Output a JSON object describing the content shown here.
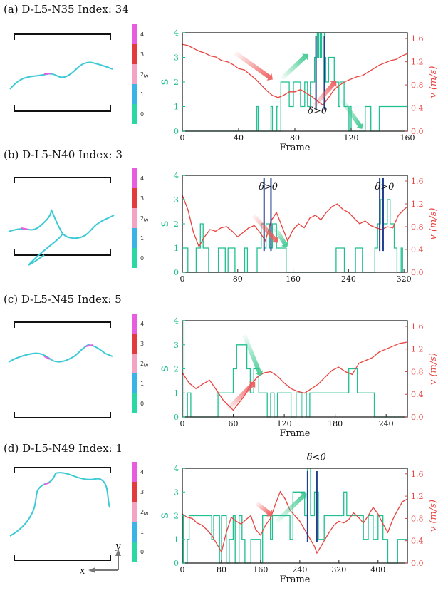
{
  "colors": {
    "s_series": "#1fbf8f",
    "v_series": "#e8433f",
    "marker": "#1f3f8f",
    "arrow_green": "#3cc98f",
    "arrow_red": "#ef5a5a",
    "axis": "#222222",
    "cb": [
      "#29d8a2",
      "#39b4e6",
      "#f3a3c3",
      "#e33a3e",
      "#e85de0"
    ]
  },
  "colorbar": {
    "label": "S",
    "ticks": [
      "0",
      "1",
      "2",
      "3",
      "4"
    ]
  },
  "legend_axes": {
    "x_label": "x",
    "y_label": "y"
  },
  "chart_data": [
    {
      "type": "line",
      "panel_label": "(a) D-L5-N35  Index: 34",
      "xlabel": "Frame",
      "ylabel_left": "S",
      "ylabel_right": "v (m/s)",
      "xlim": [
        0,
        160
      ],
      "ylim_left": [
        0,
        4
      ],
      "ylim_right": [
        0,
        1.7
      ],
      "x_ticks": [
        "0",
        "40",
        "80",
        "120",
        "160"
      ],
      "x_tick_values": [
        0,
        40,
        80,
        120,
        160
      ],
      "y_left_ticks": [
        "0",
        "1",
        "2",
        "3",
        "4"
      ],
      "y_right_ticks": [
        "0.0",
        "0.4",
        "0.8",
        "1.2",
        "1.6"
      ],
      "y_right_tick_values": [
        0.0,
        0.4,
        0.8,
        1.2,
        1.6
      ],
      "annotations": [
        {
          "text": "δ>0",
          "x": 96,
          "y": 0.3
        }
      ],
      "markers": [
        95,
        101
      ],
      "series": [
        {
          "name": "S",
          "axis": "left",
          "x": [
            0,
            53,
            53,
            54,
            54,
            63,
            63,
            64,
            64,
            67,
            67,
            68,
            68,
            70,
            70,
            76,
            76,
            79,
            79,
            84,
            84,
            87,
            87,
            89,
            89,
            91,
            91,
            94,
            94,
            95,
            95,
            96,
            96,
            97,
            97,
            98,
            98,
            99,
            99,
            101,
            101,
            102,
            102,
            104,
            104,
            108,
            108,
            111,
            111,
            112,
            112,
            115,
            115,
            118,
            118,
            119,
            119,
            120,
            120,
            130,
            130,
            134,
            134,
            140,
            140,
            145,
            145,
            150,
            150,
            157,
            157,
            160
          ],
          "values": [
            0,
            0,
            1,
            1,
            0,
            0,
            1,
            1,
            0,
            0,
            1,
            1,
            0,
            0,
            2,
            2,
            1,
            1,
            2,
            2,
            1,
            1,
            2,
            2,
            1,
            1,
            2,
            2,
            3,
            3,
            4,
            4,
            3,
            3,
            4,
            4,
            3,
            3,
            4,
            4,
            3,
            3,
            2,
            2,
            3,
            3,
            2,
            2,
            1,
            1,
            2,
            2,
            1,
            1,
            0,
            0,
            1,
            1,
            0,
            0,
            1,
            1,
            0,
            0,
            1,
            1,
            1,
            1,
            1,
            1,
            1,
            1
          ]
        },
        {
          "name": "v",
          "axis": "right",
          "x": [
            0,
            4,
            8,
            12,
            16,
            20,
            24,
            28,
            32,
            36,
            40,
            44,
            48,
            52,
            56,
            60,
            64,
            68,
            72,
            76,
            80,
            84,
            88,
            92,
            96,
            100,
            104,
            108,
            112,
            116,
            120,
            124,
            128,
            132,
            136,
            140,
            144,
            148,
            152,
            156,
            160
          ],
          "values": [
            1.5,
            1.48,
            1.43,
            1.38,
            1.35,
            1.3,
            1.28,
            1.22,
            1.2,
            1.15,
            1.08,
            1.06,
            0.98,
            0.9,
            0.8,
            0.7,
            0.62,
            0.58,
            0.62,
            0.68,
            0.68,
            0.72,
            0.66,
            0.6,
            0.52,
            0.45,
            0.58,
            0.72,
            0.8,
            0.86,
            0.9,
            0.94,
            0.96,
            1.02,
            1.08,
            1.14,
            1.18,
            1.22,
            1.24,
            1.3,
            1.34
          ]
        }
      ]
    },
    {
      "type": "line",
      "panel_label": "(b) D-L5-N40  Index: 3",
      "xlabel": "",
      "ylabel_left": "S",
      "ylabel_right": "v (m/s)",
      "xlim": [
        0,
        325
      ],
      "ylim_left": [
        0,
        4
      ],
      "ylim_right": [
        0,
        1.7
      ],
      "x_ticks": [
        "0",
        "80",
        "160",
        "240",
        "320"
      ],
      "x_tick_values": [
        0,
        80,
        160,
        240,
        320
      ],
      "y_left_ticks": [
        "0",
        "1",
        "2",
        "3",
        "4"
      ],
      "y_right_ticks": [
        "0.0",
        "0.4",
        "0.8",
        "1.2",
        "1.6"
      ],
      "y_right_tick_values": [
        0.0,
        0.4,
        0.8,
        1.2,
        1.6
      ],
      "annotations": [
        {
          "text": "δ>0",
          "x": 124,
          "y": 1.45
        },
        {
          "text": "δ>0",
          "x": 292,
          "y": 1.45
        }
      ],
      "markers": [
        118,
        128,
        285,
        290
      ],
      "series": [
        {
          "name": "S",
          "axis": "left",
          "x": [
            0,
            8,
            8,
            20,
            20,
            26,
            26,
            30,
            30,
            38,
            38,
            52,
            52,
            62,
            62,
            66,
            66,
            76,
            76,
            90,
            90,
            94,
            94,
            108,
            108,
            114,
            114,
            118,
            118,
            121,
            121,
            126,
            126,
            130,
            130,
            136,
            136,
            150,
            150,
            158,
            158,
            222,
            222,
            234,
            234,
            250,
            250,
            260,
            260,
            278,
            278,
            282,
            282,
            286,
            286,
            290,
            290,
            296,
            296,
            300,
            300,
            306,
            306,
            310,
            310,
            316,
            316,
            318,
            318,
            325
          ],
          "values": [
            1,
            1,
            0,
            0,
            1,
            1,
            2,
            2,
            1,
            1,
            0,
            0,
            1,
            1,
            0,
            0,
            1,
            1,
            0,
            0,
            1,
            1,
            0,
            0,
            1,
            1,
            2,
            2,
            1,
            1,
            2,
            2,
            1,
            1,
            2,
            2,
            1,
            1,
            0,
            0,
            0,
            0,
            1,
            1,
            0,
            0,
            1,
            1,
            0,
            0,
            1,
            1,
            2,
            2,
            3,
            3,
            2,
            2,
            3,
            3,
            2,
            2,
            1,
            1,
            0,
            0,
            1,
            1,
            0,
            0
          ]
        },
        {
          "name": "v",
          "axis": "right",
          "x": [
            0,
            8,
            16,
            24,
            32,
            40,
            48,
            56,
            64,
            72,
            80,
            88,
            96,
            104,
            112,
            120,
            128,
            136,
            144,
            152,
            160,
            168,
            176,
            184,
            192,
            200,
            208,
            216,
            224,
            232,
            240,
            248,
            256,
            264,
            272,
            280,
            288,
            296,
            304,
            312,
            320,
            325
          ],
          "values": [
            1.35,
            1.1,
            0.7,
            0.45,
            0.62,
            0.75,
            0.72,
            0.78,
            0.8,
            0.72,
            0.62,
            0.7,
            0.78,
            0.82,
            0.7,
            0.55,
            0.9,
            1.05,
            0.8,
            0.55,
            0.75,
            0.85,
            0.78,
            0.95,
            1.0,
            0.92,
            1.05,
            1.15,
            1.2,
            1.1,
            1.05,
            0.95,
            0.85,
            0.9,
            0.82,
            0.78,
            0.75,
            0.8,
            0.78,
            1.0,
            1.1,
            1.15
          ]
        }
      ]
    },
    {
      "type": "line",
      "panel_label": "(c) D-L5-N45  Index: 5",
      "xlabel": "Frame",
      "ylabel_left": "S",
      "ylabel_right": "v (m/s)",
      "xlim": [
        0,
        265
      ],
      "ylim_left": [
        0,
        4
      ],
      "ylim_right": [
        0,
        1.7
      ],
      "x_ticks": [
        "0",
        "60",
        "120",
        "180",
        "240"
      ],
      "x_tick_values": [
        0,
        60,
        120,
        180,
        240
      ],
      "y_left_ticks": [
        "0",
        "1",
        "2",
        "3",
        "4"
      ],
      "y_right_ticks": [
        "0.0",
        "0.4",
        "0.8",
        "1.2",
        "1.6"
      ],
      "y_right_tick_values": [
        0.0,
        0.4,
        0.8,
        1.2,
        1.6
      ],
      "annotations": [],
      "markers": [],
      "series": [
        {
          "name": "S",
          "axis": "left",
          "x": [
            0,
            2,
            2,
            6,
            6,
            10,
            10,
            12,
            12,
            42,
            42,
            60,
            60,
            64,
            64,
            76,
            76,
            80,
            80,
            84,
            84,
            90,
            90,
            100,
            100,
            104,
            104,
            108,
            108,
            112,
            112,
            116,
            116,
            128,
            128,
            134,
            134,
            140,
            140,
            142,
            142,
            146,
            146,
            150,
            150,
            156,
            156,
            196,
            196,
            206,
            206,
            214,
            214,
            226,
            226,
            240,
            240,
            265
          ],
          "values": [
            4,
            4,
            0,
            0,
            1,
            1,
            0,
            0,
            0,
            0,
            1,
            1,
            2,
            2,
            3,
            3,
            2,
            2,
            1,
            1,
            2,
            2,
            1,
            1,
            0,
            0,
            1,
            1,
            0,
            0,
            1,
            1,
            1,
            1,
            0,
            0,
            1,
            1,
            0,
            0,
            1,
            1,
            0,
            0,
            1,
            1,
            1,
            1,
            2,
            2,
            1,
            1,
            1,
            1,
            0,
            0,
            0,
            0
          ]
        },
        {
          "name": "v",
          "axis": "right",
          "x": [
            0,
            8,
            16,
            24,
            32,
            40,
            48,
            56,
            60,
            64,
            72,
            80,
            88,
            96,
            104,
            112,
            120,
            128,
            136,
            144,
            152,
            160,
            168,
            176,
            184,
            192,
            200,
            208,
            216,
            224,
            232,
            240,
            248,
            256,
            264
          ],
          "values": [
            0.78,
            0.6,
            0.5,
            0.58,
            0.65,
            0.48,
            0.3,
            0.18,
            0.12,
            0.2,
            0.35,
            0.55,
            0.7,
            0.78,
            0.8,
            0.72,
            0.6,
            0.5,
            0.45,
            0.42,
            0.5,
            0.58,
            0.7,
            0.82,
            0.88,
            0.8,
            0.75,
            0.95,
            1.0,
            1.05,
            1.15,
            1.2,
            1.25,
            1.3,
            1.32
          ]
        }
      ]
    },
    {
      "type": "line",
      "panel_label": "(d) D-L5-N49 Index: 1",
      "xlabel": "Frame",
      "ylabel_left": "S",
      "ylabel_right": "v (m/s)",
      "xlim": [
        0,
        460
      ],
      "ylim_left": [
        0,
        4
      ],
      "ylim_right": [
        0,
        1.7
      ],
      "x_ticks": [
        "0",
        "80",
        "160",
        "240",
        "320",
        "400"
      ],
      "x_tick_values": [
        0,
        80,
        160,
        240,
        320,
        400
      ],
      "y_left_ticks": [
        "0",
        "1",
        "2",
        "3",
        "4"
      ],
      "y_right_ticks": [
        "0.0",
        "0.4",
        "0.8",
        "1.2",
        "1.6"
      ],
      "y_right_tick_values": [
        0.0,
        0.4,
        0.8,
        1.2,
        1.6
      ],
      "annotations": [
        {
          "text": "δ<0",
          "x": 274,
          "y": 1.85
        }
      ],
      "markers": [
        256,
        275
      ],
      "series": [
        {
          "name": "S",
          "axis": "left",
          "x": [
            0,
            2,
            2,
            10,
            10,
            14,
            14,
            60,
            60,
            64,
            64,
            76,
            76,
            80,
            80,
            90,
            90,
            96,
            96,
            104,
            104,
            108,
            108,
            116,
            116,
            122,
            122,
            128,
            128,
            140,
            140,
            160,
            160,
            164,
            164,
            180,
            180,
            184,
            184,
            220,
            220,
            226,
            226,
            250,
            250,
            256,
            256,
            262,
            262,
            270,
            270,
            278,
            278,
            290,
            290,
            330,
            330,
            336,
            336,
            370,
            370,
            380,
            380,
            390,
            390,
            400,
            400,
            410,
            410,
            420,
            420,
            440,
            440,
            460
          ],
          "values": [
            2,
            2,
            0,
            0,
            1,
            1,
            2,
            2,
            1,
            1,
            2,
            2,
            0,
            0,
            2,
            2,
            0,
            0,
            1,
            1,
            2,
            2,
            0,
            0,
            2,
            2,
            1,
            1,
            0,
            0,
            1,
            1,
            0,
            0,
            2,
            2,
            1,
            1,
            2,
            2,
            1,
            1,
            3,
            3,
            2,
            2,
            4,
            4,
            2,
            2,
            3,
            3,
            1,
            1,
            2,
            2,
            3,
            3,
            2,
            2,
            1,
            1,
            2,
            2,
            1,
            1,
            2,
            2,
            1,
            1,
            0,
            0,
            1,
            1
          ]
        },
        {
          "name": "v",
          "axis": "right",
          "x": [
            0,
            10,
            20,
            30,
            40,
            50,
            60,
            70,
            80,
            90,
            100,
            110,
            120,
            130,
            140,
            150,
            160,
            170,
            180,
            190,
            200,
            210,
            220,
            230,
            240,
            250,
            260,
            270,
            275,
            280,
            290,
            300,
            310,
            320,
            330,
            340,
            350,
            360,
            370,
            380,
            390,
            400,
            410,
            420,
            430,
            440,
            450,
            460
          ],
          "values": [
            0.88,
            0.82,
            0.8,
            0.72,
            0.68,
            0.6,
            0.5,
            0.35,
            0.2,
            0.55,
            0.82,
            0.75,
            0.7,
            0.78,
            0.85,
            0.6,
            0.5,
            0.68,
            0.8,
            1.05,
            1.28,
            1.15,
            0.95,
            0.85,
            0.75,
            0.6,
            0.45,
            0.3,
            0.18,
            0.25,
            0.4,
            0.55,
            0.68,
            0.75,
            0.72,
            0.78,
            0.9,
            0.82,
            0.72,
            0.85,
            1.0,
            0.88,
            0.7,
            0.55,
            0.78,
            0.95,
            1.1,
            1.15
          ]
        }
      ]
    }
  ]
}
